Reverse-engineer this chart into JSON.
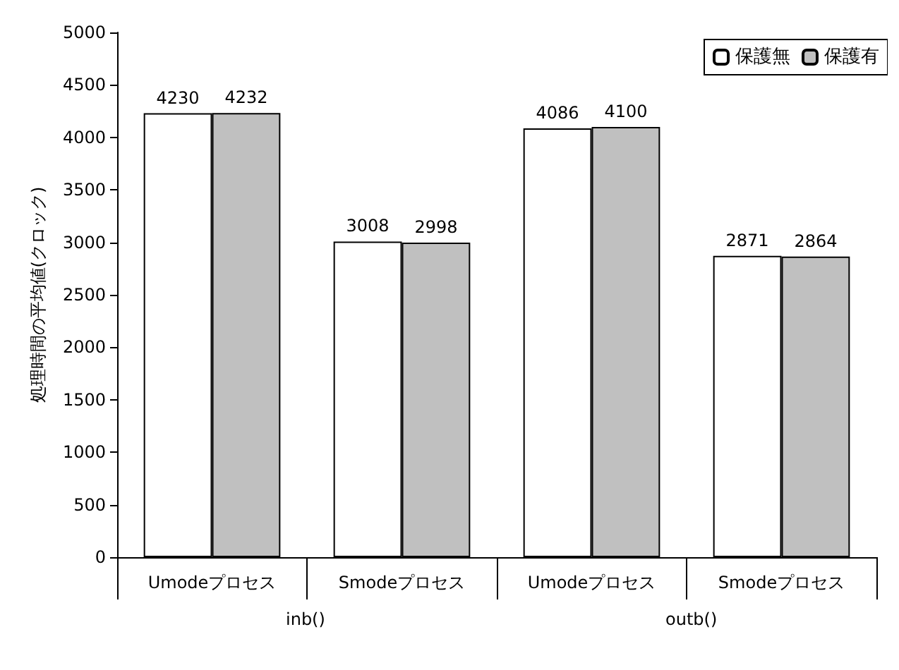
{
  "chart_data": {
    "type": "bar",
    "ylabel": "処理時間の平均値(クロック)",
    "categories": [
      "Umodeプロセス",
      "Smodeプロセス",
      "Umodeプロセス",
      "Smodeプロセス"
    ],
    "series": [
      {
        "name": "保護無",
        "color": "#ffffff",
        "values": [
          4230,
          3008,
          4086,
          2871
        ]
      },
      {
        "name": "保護有",
        "color": "#c0c0c0",
        "values": [
          4232,
          2998,
          4100,
          2864
        ]
      }
    ],
    "ylim": [
      0,
      5000
    ],
    "yticks": [
      0,
      500,
      1000,
      1500,
      2000,
      2500,
      3000,
      3500,
      4000,
      4500,
      5000
    ],
    "grid": false,
    "legend": "top right",
    "data_labels": true,
    "annotations": [
      "inb()",
      "outb()"
    ]
  }
}
